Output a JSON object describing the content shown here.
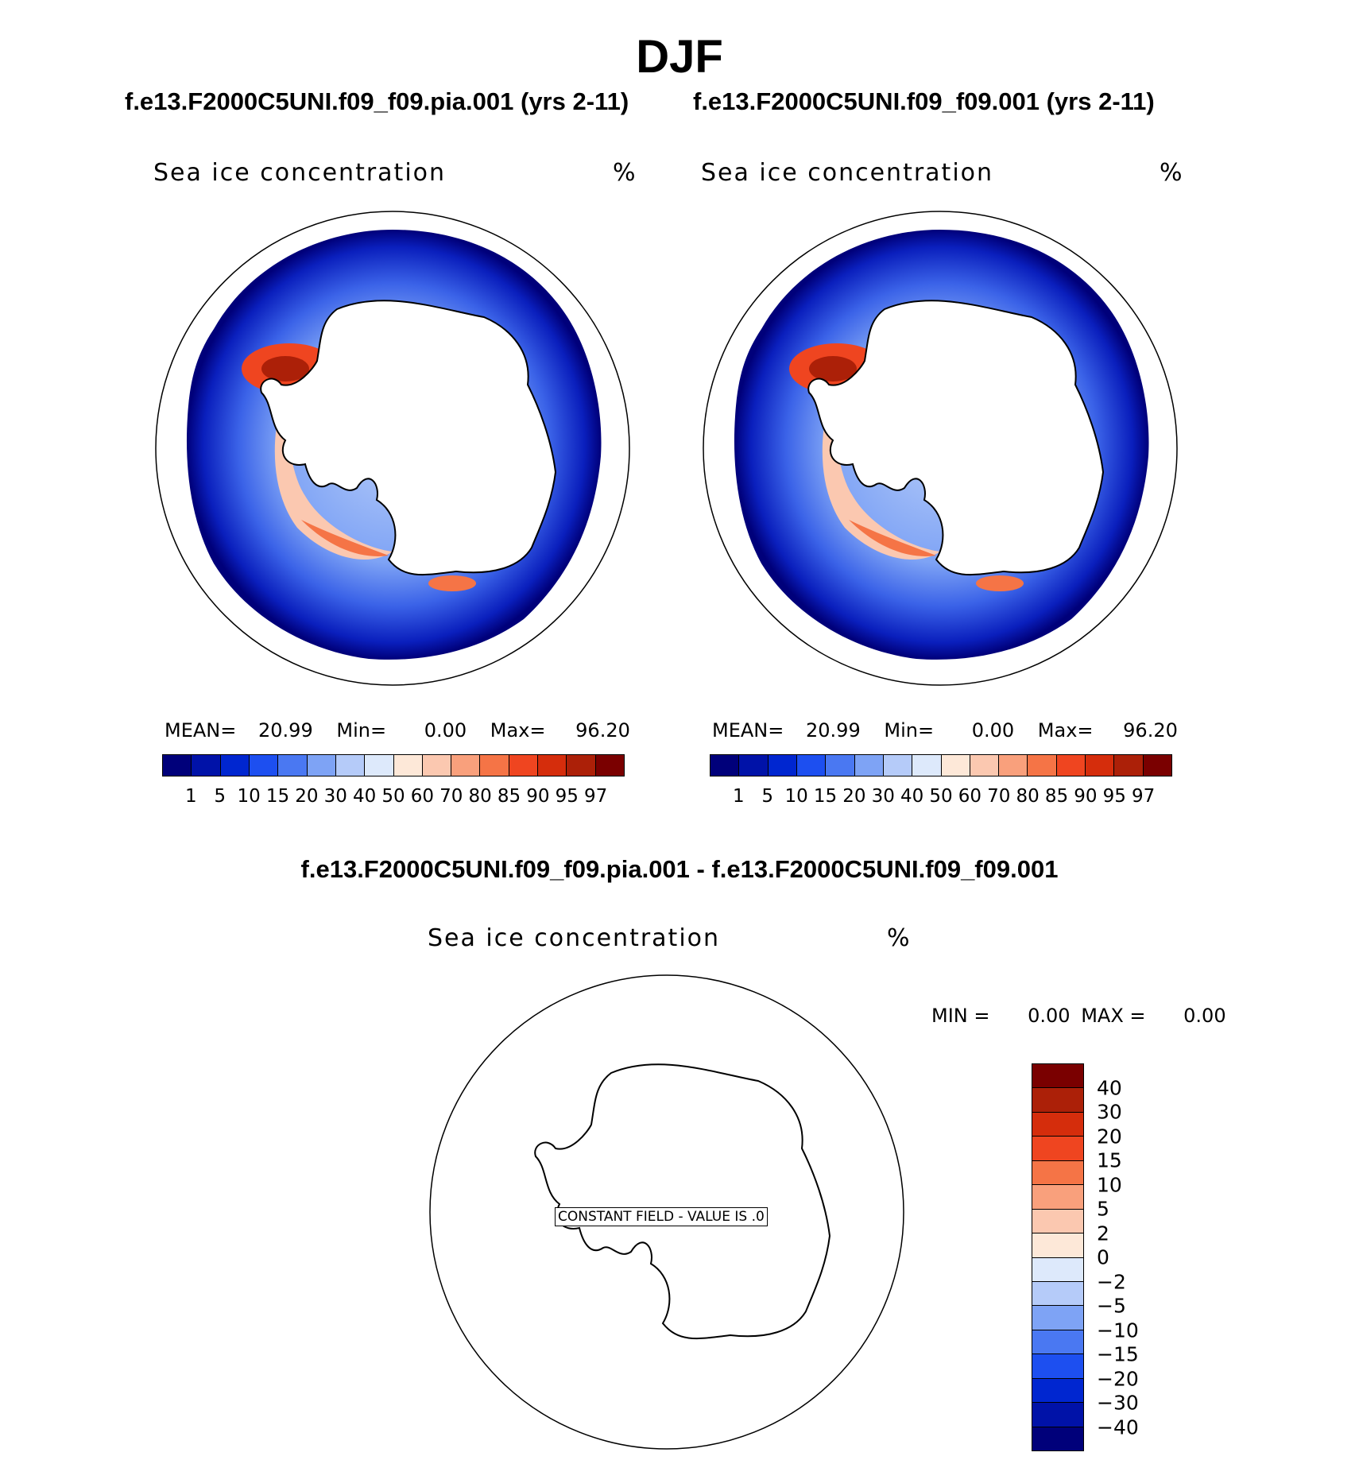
{
  "figure": {
    "season_title": "DJF"
  },
  "panels": [
    {
      "case_title": "f.e13.F2000C5UNI.f09_f09.pia.001 (yrs 2-11)",
      "variable_label": "Sea ice concentration",
      "units": "%",
      "mean_label": "MEAN=",
      "mean_value": "20.99",
      "min_label": "Min=",
      "min_value": "0.00",
      "max_label": "Max=",
      "max_value": "96.20"
    },
    {
      "case_title": "f.e13.F2000C5UNI.f09_f09.001 (yrs 2-11)",
      "variable_label": "Sea ice concentration",
      "units": "%",
      "mean_label": "MEAN=",
      "mean_value": "20.99",
      "min_label": "Min=",
      "min_value": "0.00",
      "max_label": "Max=",
      "max_value": "96.20"
    }
  ],
  "difference": {
    "title": "f.e13.F2000C5UNI.f09_f09.pia.001 - f.e13.F2000C5UNI.f09_f09.001",
    "variable_label": "Sea ice concentration",
    "units": "%",
    "min_label": "MIN =",
    "min_value": "0.00",
    "max_label": "MAX =",
    "max_value": "0.00",
    "constant_field_label": "CONSTANT FIELD - VALUE IS .0"
  },
  "colorbar_main": {
    "levels": [
      "1",
      "5",
      "10",
      "15",
      "20",
      "30",
      "40",
      "50",
      "60",
      "70",
      "80",
      "85",
      "90",
      "95",
      "97"
    ],
    "colors": [
      "#00007a",
      "#0012a8",
      "#0026d0",
      "#1d4ff0",
      "#4a78f2",
      "#7ea3f5",
      "#b5cbf9",
      "#dde9fb",
      "#fde8d8",
      "#fbc8b0",
      "#f9a07c",
      "#f57446",
      "#ef4520",
      "#d52d0c",
      "#ac2008",
      "#7a0000"
    ]
  },
  "colorbar_diff": {
    "levels": [
      "40",
      "30",
      "20",
      "15",
      "10",
      "5",
      "2",
      "0",
      "−2",
      "−5",
      "−10",
      "−15",
      "−20",
      "−30",
      "−40"
    ],
    "colors": [
      "#7a0000",
      "#ac2008",
      "#d52d0c",
      "#ef4520",
      "#f57446",
      "#f9a07c",
      "#fbc8b0",
      "#fde8d8",
      "#dde9fb",
      "#b5cbf9",
      "#7ea3f5",
      "#4a78f2",
      "#1d4ff0",
      "#0026d0",
      "#0012a8",
      "#00007a"
    ]
  },
  "map_data": {
    "projection": "south polar stereographic",
    "region": "Antarctica / Southern Ocean",
    "shading": "sea ice concentration (%)"
  }
}
